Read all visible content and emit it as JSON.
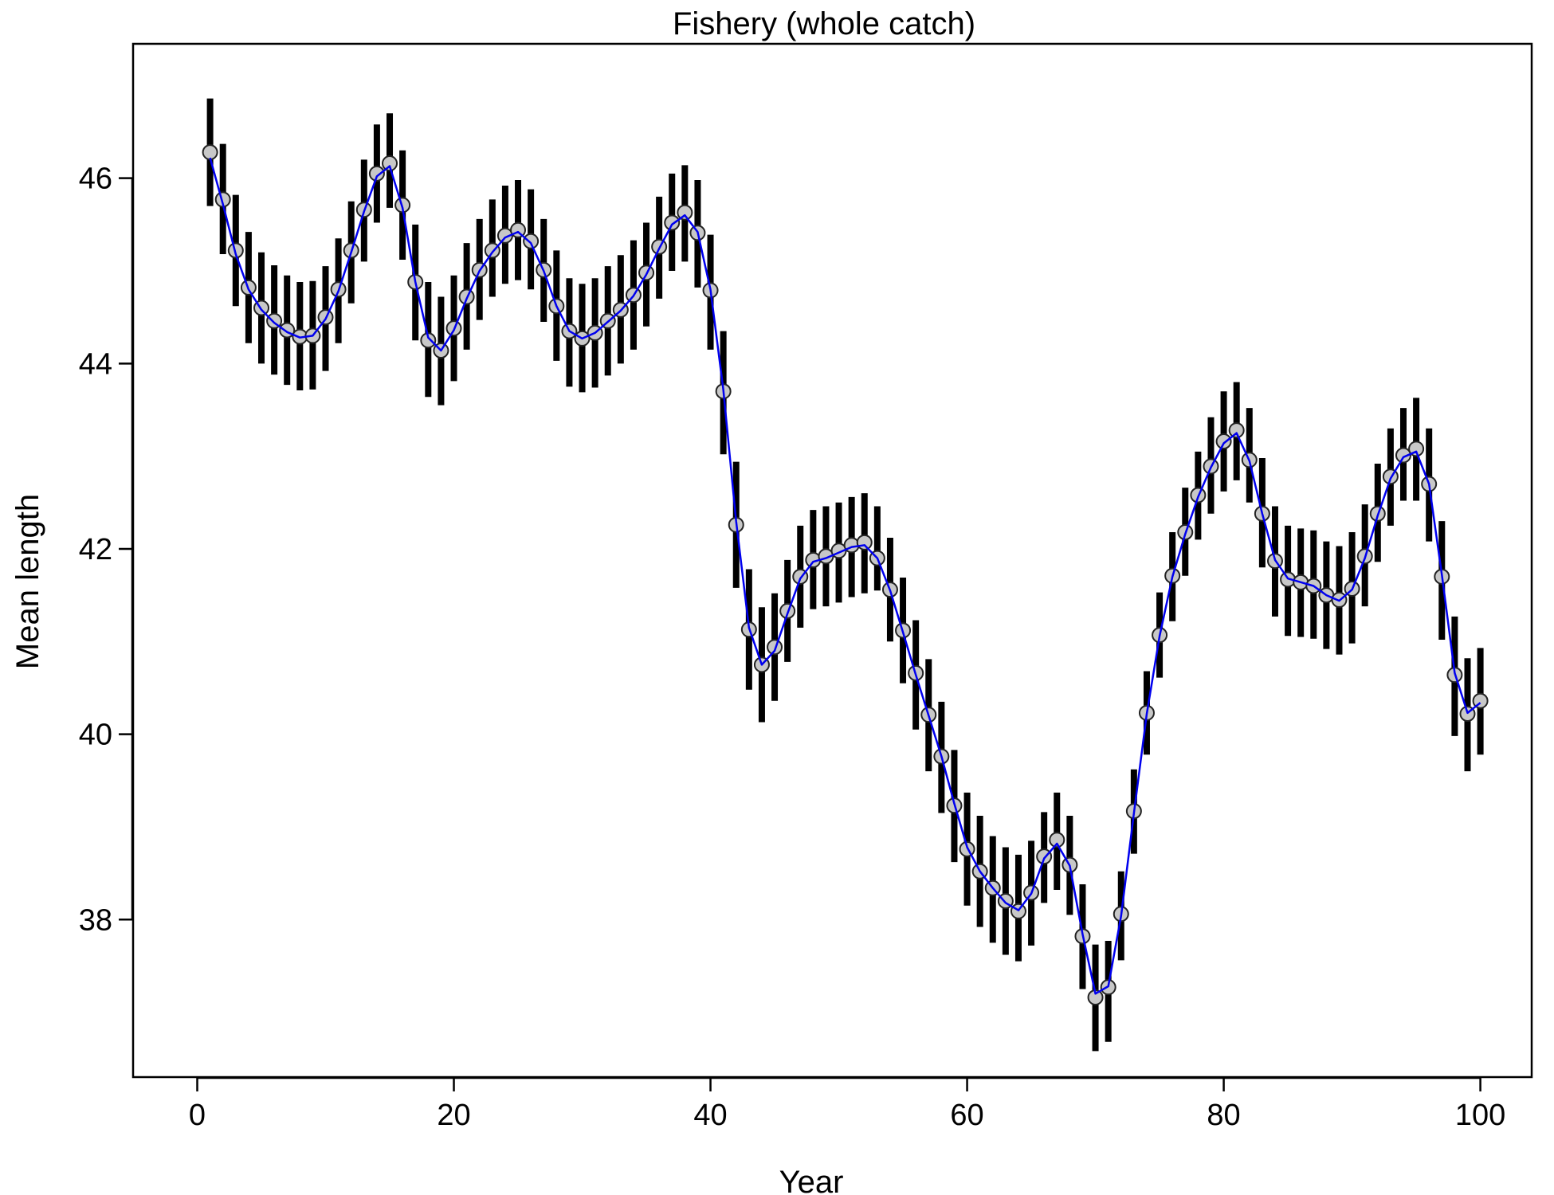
{
  "chart_data": {
    "type": "line",
    "title": "Fishery (whole catch)",
    "xlabel": "Year",
    "ylabel": "Mean length",
    "xlim": [
      -5,
      104
    ],
    "ylim": [
      36.3,
      47.45
    ],
    "xticks": [
      0,
      20,
      40,
      60,
      80,
      100
    ],
    "yticks": [
      38,
      40,
      42,
      44,
      46
    ],
    "grid": false,
    "legend": "none",
    "colors": {
      "fit_line": "#0000ee",
      "obs_point_fill": "#c8c8c8",
      "error_bar": "#000000"
    },
    "series": [
      {
        "role": "observed",
        "marker": "circle",
        "x": [
          1,
          2,
          3,
          4,
          5,
          6,
          7,
          8,
          9,
          10,
          11,
          12,
          13,
          14,
          15,
          16,
          17,
          18,
          19,
          20,
          21,
          22,
          23,
          24,
          25,
          26,
          27,
          28,
          29,
          30,
          31,
          32,
          33,
          34,
          35,
          36,
          37,
          38,
          39,
          40,
          41,
          42,
          43,
          44,
          45,
          46,
          47,
          48,
          49,
          50,
          51,
          52,
          53,
          54,
          55,
          56,
          57,
          58,
          59,
          60,
          61,
          62,
          63,
          64,
          65,
          66,
          67,
          68,
          69,
          70,
          71,
          72,
          73,
          74,
          75,
          76,
          77,
          78,
          79,
          80,
          81,
          82,
          83,
          84,
          85,
          86,
          87,
          88,
          89,
          90,
          91,
          92,
          93,
          94,
          95,
          96,
          97,
          98,
          99,
          100
        ],
        "y": [
          46.28,
          45.77,
          45.22,
          44.82,
          44.6,
          44.46,
          44.36,
          44.29,
          44.3,
          44.5,
          44.8,
          45.22,
          45.66,
          46.05,
          46.16,
          45.71,
          44.88,
          44.25,
          44.14,
          44.38,
          44.72,
          45.01,
          45.22,
          45.38,
          45.44,
          45.32,
          45.01,
          44.62,
          44.35,
          44.27,
          44.33,
          44.46,
          44.58,
          44.74,
          44.98,
          45.26,
          45.52,
          45.63,
          45.41,
          44.79,
          43.7,
          42.26,
          41.13,
          40.75,
          40.94,
          41.33,
          41.7,
          41.88,
          41.92,
          41.98,
          42.04,
          42.07,
          41.9,
          41.56,
          41.12,
          40.66,
          40.21,
          39.76,
          39.23,
          38.76,
          38.52,
          38.34,
          38.2,
          38.09,
          38.29,
          38.68,
          38.86,
          38.59,
          37.82,
          37.16,
          37.27,
          38.06,
          39.17,
          40.23,
          41.07,
          41.71,
          42.18,
          42.58,
          42.89,
          43.16,
          43.28,
          42.96,
          42.38,
          41.87,
          41.67,
          41.64,
          41.6,
          41.5,
          41.45,
          41.57,
          41.92,
          42.38,
          42.78,
          43.01,
          43.08,
          42.7,
          41.7,
          40.64,
          40.22,
          40.36
        ],
        "error_low": [
          45.7,
          45.18,
          44.62,
          44.22,
          44.0,
          43.88,
          43.77,
          43.71,
          43.72,
          43.92,
          44.22,
          44.65,
          45.1,
          45.52,
          45.68,
          45.12,
          44.25,
          43.64,
          43.55,
          43.81,
          44.15,
          44.47,
          44.72,
          44.86,
          44.9,
          44.8,
          44.45,
          44.03,
          43.75,
          43.69,
          43.74,
          43.87,
          44.0,
          44.15,
          44.4,
          44.7,
          45.0,
          45.1,
          44.82,
          44.15,
          43.02,
          41.58,
          40.48,
          40.13,
          40.36,
          40.78,
          41.15,
          41.35,
          41.38,
          41.42,
          41.48,
          41.52,
          41.55,
          41.0,
          40.55,
          40.05,
          39.6,
          39.15,
          38.62,
          38.15,
          37.92,
          37.75,
          37.62,
          37.55,
          37.72,
          38.18,
          38.32,
          38.05,
          37.25,
          36.58,
          36.68,
          37.56,
          38.71,
          39.78,
          40.61,
          41.22,
          41.71,
          42.1,
          42.38,
          42.62,
          42.74,
          42.5,
          41.8,
          41.27,
          41.06,
          41.05,
          41.03,
          40.92,
          40.86,
          40.98,
          41.38,
          41.86,
          42.25,
          42.52,
          42.52,
          42.08,
          41.02,
          39.98,
          39.6,
          39.78
        ],
        "error_high": [
          46.86,
          46.37,
          45.82,
          45.42,
          45.2,
          45.06,
          44.95,
          44.88,
          44.89,
          45.05,
          45.35,
          45.75,
          46.2,
          46.58,
          46.7,
          46.3,
          45.5,
          44.88,
          44.72,
          44.95,
          45.3,
          45.56,
          45.77,
          45.92,
          45.98,
          45.88,
          45.56,
          45.22,
          44.92,
          44.86,
          44.92,
          45.05,
          45.17,
          45.33,
          45.52,
          45.8,
          46.05,
          46.14,
          45.98,
          45.39,
          44.35,
          42.94,
          41.78,
          41.37,
          41.52,
          41.88,
          42.25,
          42.42,
          42.46,
          42.5,
          42.56,
          42.6,
          42.46,
          42.12,
          41.69,
          41.23,
          40.81,
          40.35,
          39.83,
          39.37,
          39.12,
          38.9,
          38.78,
          38.7,
          38.85,
          39.16,
          39.37,
          39.12,
          38.38,
          37.73,
          37.77,
          38.52,
          39.62,
          40.68,
          41.53,
          42.18,
          42.66,
          43.05,
          43.42,
          43.7,
          43.8,
          43.52,
          42.98,
          42.46,
          42.25,
          42.22,
          42.2,
          42.08,
          42.03,
          42.18,
          42.48,
          42.92,
          43.3,
          43.52,
          43.63,
          43.3,
          42.3,
          41.27,
          40.82,
          40.93
        ]
      },
      {
        "role": "fitted",
        "marker": "none",
        "x": [
          1,
          2,
          3,
          4,
          5,
          6,
          7,
          8,
          9,
          10,
          11,
          12,
          13,
          14,
          15,
          16,
          17,
          18,
          19,
          20,
          21,
          22,
          23,
          24,
          25,
          26,
          27,
          28,
          29,
          30,
          31,
          32,
          33,
          34,
          35,
          36,
          37,
          38,
          39,
          40,
          41,
          42,
          43,
          44,
          45,
          46,
          47,
          48,
          49,
          50,
          51,
          52,
          53,
          54,
          55,
          56,
          57,
          58,
          59,
          60,
          61,
          62,
          63,
          64,
          65,
          66,
          67,
          68,
          69,
          70,
          71,
          72,
          73,
          74,
          75,
          76,
          77,
          78,
          79,
          80,
          81,
          82,
          83,
          84,
          85,
          86,
          87,
          88,
          89,
          90,
          91,
          92,
          93,
          94,
          95,
          96,
          97,
          98,
          99,
          100
        ],
        "y": [
          46.22,
          45.72,
          45.18,
          44.8,
          44.58,
          44.44,
          44.34,
          44.28,
          44.3,
          44.48,
          44.78,
          45.2,
          45.64,
          46.02,
          46.13,
          45.68,
          44.88,
          44.28,
          44.14,
          44.36,
          44.7,
          45.0,
          45.2,
          45.36,
          45.42,
          45.3,
          45.0,
          44.62,
          44.35,
          44.27,
          44.33,
          44.45,
          44.57,
          44.73,
          44.96,
          45.24,
          45.5,
          45.6,
          45.42,
          44.8,
          43.72,
          42.3,
          41.15,
          40.75,
          40.9,
          41.3,
          41.68,
          41.86,
          41.9,
          41.96,
          42.02,
          42.04,
          41.9,
          41.55,
          41.1,
          40.64,
          40.2,
          39.76,
          39.25,
          38.78,
          38.52,
          38.34,
          38.18,
          38.1,
          38.28,
          38.66,
          38.82,
          38.58,
          37.84,
          37.2,
          37.28,
          38.04,
          39.15,
          40.22,
          41.06,
          41.7,
          42.16,
          42.56,
          42.88,
          43.14,
          43.25,
          42.95,
          42.38,
          41.88,
          41.68,
          41.64,
          41.6,
          41.5,
          41.44,
          41.56,
          41.9,
          42.36,
          42.76,
          42.99,
          43.05,
          42.7,
          41.72,
          40.66,
          40.23,
          40.34
        ]
      }
    ]
  }
}
